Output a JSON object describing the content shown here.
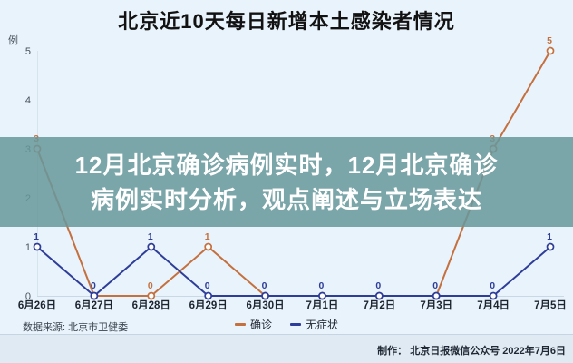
{
  "overlay_banner": {
    "line1": "12月北京确诊病例实时，12月北京确诊",
    "line2": "病例实时分析，观点阐述与立场表达"
  },
  "footer": {
    "source_note": "数据来源: 北京市卫健委",
    "credit_note": "制作： 北京日报微信公众号  2022年7月6日"
  },
  "colors": {
    "background": "#E9F3FB",
    "footer_bar": "#DFEAF3",
    "banner": "#68979B",
    "banner_opacity": 0.86,
    "axis_line": "#C9D8E4",
    "y_axis_line": "#D7E3ED",
    "confirmed": "#C4703F",
    "asymptomatic": "#2E3D99"
  },
  "chart_data": {
    "type": "line",
    "title": "北京近10天每日新增本土感染者情况",
    "categories": [
      "6月26日",
      "6月27日",
      "6月28日",
      "6月29日",
      "6月30日",
      "7月1日",
      "7月2日",
      "7月3日",
      "7月4日",
      "7月5日"
    ],
    "series": [
      {
        "name": "确诊",
        "color": "#C4703F",
        "values": [
          3,
          0,
          0,
          1,
          0,
          0,
          0,
          0,
          3,
          5
        ]
      },
      {
        "name": "无症状",
        "color": "#2E3D99",
        "values": [
          1,
          0,
          1,
          0,
          0,
          0,
          0,
          0,
          0,
          1
        ]
      }
    ],
    "ylabel": "例",
    "yticks": [
      0,
      1,
      2,
      3,
      4,
      5
    ],
    "ylim": [
      0,
      5
    ],
    "grid": false,
    "point_labels": true,
    "legend_position": "bottom"
  }
}
